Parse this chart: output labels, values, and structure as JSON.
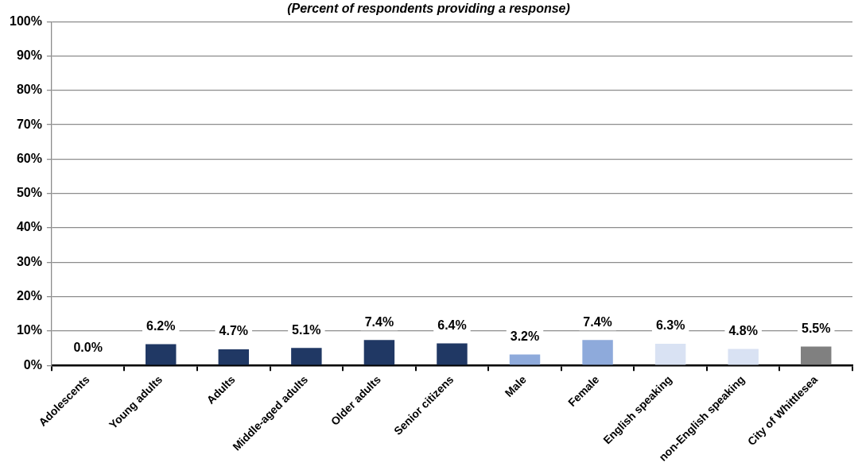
{
  "chart_data": {
    "type": "bar",
    "title": "(Percent of respondents providing a response)",
    "categories": [
      "Adolescents",
      "Young adults",
      "Adults",
      "Middle-aged adults",
      "Older adults",
      "Senior citizens",
      "Male",
      "Female",
      "English speaking",
      "non-English speaking",
      "City of Whittlesea"
    ],
    "values": [
      0.0,
      6.2,
      4.7,
      5.1,
      7.4,
      6.4,
      3.2,
      7.4,
      6.3,
      4.8,
      5.5
    ],
    "colors": [
      "#203864",
      "#203864",
      "#203864",
      "#203864",
      "#203864",
      "#203864",
      "#8eaadb",
      "#8eaadb",
      "#d9e2f3",
      "#d9e2f3",
      "#808080"
    ],
    "value_labels": [
      "0.0%",
      "6.2%",
      "4.7%",
      "5.1%",
      "7.4%",
      "6.4%",
      "3.2%",
      "7.4%",
      "6.3%",
      "4.8%",
      "5.5%"
    ],
    "ylim": [
      0,
      100
    ],
    "yticks": [
      {
        "value": 0,
        "label": "0%"
      },
      {
        "value": 10,
        "label": "10%"
      },
      {
        "value": 20,
        "label": "20%"
      },
      {
        "value": 30,
        "label": "30%"
      },
      {
        "value": 40,
        "label": "40%"
      },
      {
        "value": 50,
        "label": "50%"
      },
      {
        "value": 60,
        "label": "60%"
      },
      {
        "value": 70,
        "label": "70%"
      },
      {
        "value": 80,
        "label": "80%"
      },
      {
        "value": 90,
        "label": "90%"
      },
      {
        "value": 100,
        "label": "100%"
      }
    ],
    "grid": "y"
  }
}
